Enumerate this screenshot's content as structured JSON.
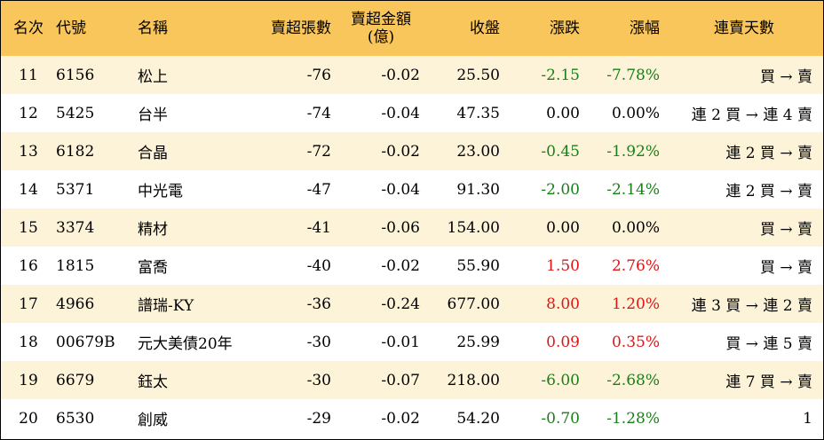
{
  "header": {
    "rank": "名次",
    "code": "代號",
    "name": "名稱",
    "sell_lots": "賣超張數",
    "sell_amount_line1": "賣超金額",
    "sell_amount_line2": "(億)",
    "close": "收盤",
    "change": "漲跌",
    "change_pct": "漲幅",
    "streak": "連賣天數"
  },
  "colors": {
    "header_bg": "#f8c65a",
    "stripe_bg": "#fdf3d8",
    "up": "#e01515",
    "down": "#1a7f1a"
  },
  "rows": [
    {
      "rank": "11",
      "code": "6156",
      "name": "松上",
      "sell_lots": "-76",
      "sell_amount": "-0.02",
      "close": "25.50",
      "change": "-2.15",
      "change_pct": "-7.78%",
      "streak": "買 → 賣",
      "dir": "down"
    },
    {
      "rank": "12",
      "code": "5425",
      "name": "台半",
      "sell_lots": "-74",
      "sell_amount": "-0.04",
      "close": "47.35",
      "change": "0.00",
      "change_pct": "0.00%",
      "streak": "連 2 買 → 連 4 賣",
      "dir": "flat"
    },
    {
      "rank": "13",
      "code": "6182",
      "name": "合晶",
      "sell_lots": "-72",
      "sell_amount": "-0.02",
      "close": "23.00",
      "change": "-0.45",
      "change_pct": "-1.92%",
      "streak": "連 2 買 → 賣",
      "dir": "down"
    },
    {
      "rank": "14",
      "code": "5371",
      "name": "中光電",
      "sell_lots": "-47",
      "sell_amount": "-0.04",
      "close": "91.30",
      "change": "-2.00",
      "change_pct": "-2.14%",
      "streak": "連 2 買 → 賣",
      "dir": "down"
    },
    {
      "rank": "15",
      "code": "3374",
      "name": "精材",
      "sell_lots": "-41",
      "sell_amount": "-0.06",
      "close": "154.00",
      "change": "0.00",
      "change_pct": "0.00%",
      "streak": "買 → 賣",
      "dir": "flat"
    },
    {
      "rank": "16",
      "code": "1815",
      "name": "富喬",
      "sell_lots": "-40",
      "sell_amount": "-0.02",
      "close": "55.90",
      "change": "1.50",
      "change_pct": "2.76%",
      "streak": "買 → 賣",
      "dir": "up"
    },
    {
      "rank": "17",
      "code": "4966",
      "name": "譜瑞-KY",
      "sell_lots": "-36",
      "sell_amount": "-0.24",
      "close": "677.00",
      "change": "8.00",
      "change_pct": "1.20%",
      "streak": "連 3 買 → 連 2 賣",
      "dir": "up"
    },
    {
      "rank": "18",
      "code": "00679B",
      "name": "元大美債20年",
      "sell_lots": "-30",
      "sell_amount": "-0.01",
      "close": "25.99",
      "change": "0.09",
      "change_pct": "0.35%",
      "streak": "買 → 連 5 賣",
      "dir": "up"
    },
    {
      "rank": "19",
      "code": "6679",
      "name": "鈺太",
      "sell_lots": "-30",
      "sell_amount": "-0.07",
      "close": "218.00",
      "change": "-6.00",
      "change_pct": "-2.68%",
      "streak": "連 7 買 → 賣",
      "dir": "down"
    },
    {
      "rank": "20",
      "code": "6530",
      "name": "創威",
      "sell_lots": "-29",
      "sell_amount": "-0.02",
      "close": "54.20",
      "change": "-0.70",
      "change_pct": "-1.28%",
      "streak": "1",
      "dir": "down"
    }
  ]
}
